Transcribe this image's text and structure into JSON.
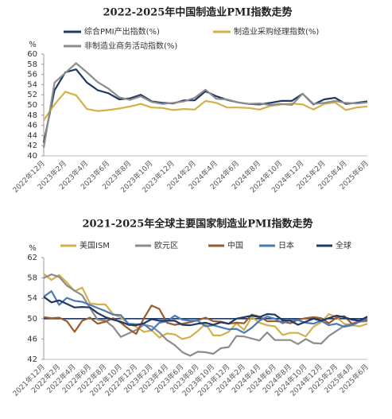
{
  "chart_data": [
    {
      "type": "line",
      "title": "2022-2025年中国制造业PMI指数走势",
      "ylabel": "%",
      "categories": [
        "2022年12月",
        null,
        "2023年2月",
        null,
        "2023年4月",
        null,
        "2023年6月",
        null,
        "2023年8月",
        null,
        "2023年10月",
        null,
        "2023年12月",
        null,
        "2024年2月",
        null,
        "2024年4月",
        null,
        "2024年6月",
        null,
        "2024年8月",
        null,
        "2024年10月",
        null,
        "2024年12月",
        null,
        "2025年2月",
        null,
        "2025年4月",
        null,
        "2025年6月"
      ],
      "series": [
        {
          "name": "综合PMI产出指数(%)",
          "color": "#1f3864",
          "values": [
            42.6,
            52.9,
            56.4,
            57.0,
            54.4,
            52.9,
            52.3,
            51.1,
            51.3,
            52.0,
            50.7,
            50.4,
            50.3,
            50.9,
            50.9,
            52.7,
            51.7,
            51.0,
            50.5,
            50.2,
            50.1,
            50.4,
            50.8,
            50.8,
            52.2,
            50.1,
            51.1,
            51.4,
            50.2,
            50.4,
            50.7
          ]
        },
        {
          "name": "制造业采购经理指数(%)",
          "color": "#d4b04a",
          "values": [
            47.0,
            50.1,
            52.6,
            51.9,
            49.2,
            48.8,
            49.0,
            49.3,
            49.7,
            50.2,
            49.5,
            49.4,
            49.0,
            49.2,
            49.1,
            50.8,
            50.4,
            49.5,
            49.5,
            49.4,
            49.1,
            49.8,
            50.1,
            50.3,
            50.1,
            49.1,
            50.2,
            50.5,
            49.0,
            49.5,
            49.7
          ]
        },
        {
          "name": "非制造业商务活动指数(%)",
          "color": "#8c8c8c",
          "values": [
            41.6,
            54.4,
            56.3,
            58.2,
            56.4,
            54.5,
            53.2,
            51.5,
            51.0,
            51.7,
            50.6,
            50.2,
            50.4,
            50.7,
            51.4,
            53.0,
            51.2,
            51.1,
            50.5,
            50.2,
            50.3,
            50.0,
            50.2,
            50.0,
            52.2,
            50.2,
            50.4,
            50.8,
            50.4,
            50.3,
            50.5
          ]
        }
      ],
      "ylim": [
        40,
        60
      ],
      "yticks": [
        40,
        42,
        44,
        46,
        48,
        50,
        52,
        54,
        56,
        58,
        60
      ],
      "grid": false
    },
    {
      "type": "line",
      "title": "2021-2025年全球主要国家制造业PMI指数走势",
      "ylabel": "%",
      "categories": [
        "2021年12月",
        null,
        "2022年2月",
        null,
        "2022年4月",
        null,
        "2022年6月",
        null,
        "2022年8月",
        null,
        "2022年10月",
        null,
        "2022年12月",
        null,
        "2023年2月",
        null,
        "2023年4月",
        null,
        "2023年6月",
        null,
        "2023年8月",
        null,
        "2023年10月",
        null,
        "2023年12月",
        null,
        "2024年2月",
        null,
        "2024年4月",
        null,
        "2024年6月",
        null,
        "2024年8月",
        null,
        "2024年10月",
        null,
        "2024年12月",
        null,
        "2025年2月",
        null,
        "2025年4月",
        null,
        "2025年6月"
      ],
      "series": [
        {
          "name": "美国ISM",
          "color": "#d4b04a",
          "values": [
            58.8,
            57.6,
            58.6,
            57.1,
            55.4,
            56.1,
            53.0,
            52.8,
            52.8,
            50.9,
            50.2,
            49.0,
            48.4,
            47.4,
            47.7,
            46.3,
            47.1,
            46.9,
            46.0,
            46.4,
            47.6,
            49.0,
            46.7,
            46.7,
            47.4,
            49.1,
            47.8,
            50.3,
            49.2,
            48.7,
            48.5,
            46.8,
            47.2,
            47.2,
            46.5,
            48.4,
            49.3,
            50.9,
            50.3,
            49.0,
            48.7,
            48.5,
            49.0
          ]
        },
        {
          "name": "欧元区",
          "color": "#8c8c8c",
          "values": [
            58.0,
            58.7,
            58.2,
            56.5,
            55.5,
            54.6,
            52.1,
            49.8,
            49.6,
            48.4,
            46.4,
            47.1,
            47.8,
            48.8,
            48.5,
            47.3,
            45.8,
            44.8,
            43.4,
            42.7,
            43.5,
            43.4,
            43.1,
            44.2,
            44.4,
            46.6,
            46.5,
            46.1,
            45.7,
            47.3,
            45.8,
            45.8,
            45.8,
            45.0,
            46.0,
            45.2,
            45.1,
            46.6,
            47.6,
            48.6,
            49.0,
            49.4,
            49.5
          ]
        },
        {
          "name": "中国",
          "color": "#9c5b2e",
          "values": [
            50.3,
            50.1,
            50.2,
            49.5,
            47.4,
            49.6,
            50.2,
            49.0,
            49.4,
            50.1,
            49.2,
            48.0,
            47.0,
            50.1,
            52.6,
            51.9,
            49.2,
            48.8,
            49.0,
            49.3,
            49.7,
            50.2,
            49.5,
            49.4,
            49.0,
            49.2,
            49.1,
            50.8,
            50.4,
            49.5,
            49.5,
            49.4,
            49.1,
            49.8,
            50.1,
            50.3,
            50.1,
            49.1,
            50.2,
            50.5,
            49.0,
            49.5,
            49.7
          ]
        },
        {
          "name": "日本",
          "color": "#4a7ab8",
          "values": [
            54.3,
            55.4,
            52.7,
            54.1,
            53.5,
            53.3,
            52.7,
            52.1,
            51.5,
            50.8,
            50.7,
            49.0,
            48.9,
            48.9,
            47.7,
            49.2,
            49.5,
            50.6,
            49.8,
            49.6,
            49.6,
            48.5,
            48.7,
            48.3,
            47.9,
            48.0,
            47.2,
            48.2,
            49.6,
            50.4,
            50.0,
            49.1,
            49.8,
            49.7,
            49.2,
            49.0,
            49.6,
            48.7,
            49.0,
            48.4,
            48.7,
            49.4,
            50.1
          ]
        },
        {
          "name": "全球",
          "color": "#1f3864",
          "values": [
            54.3,
            53.2,
            53.6,
            52.9,
            52.2,
            52.3,
            52.2,
            51.1,
            50.3,
            49.8,
            49.4,
            48.8,
            48.7,
            49.1,
            49.9,
            49.6,
            49.6,
            49.6,
            48.8,
            48.7,
            49.0,
            49.2,
            48.8,
            49.3,
            49.0,
            50.0,
            50.3,
            50.6,
            50.3,
            50.9,
            50.8,
            49.7,
            49.6,
            48.8,
            49.4,
            50.0,
            49.6,
            50.1,
            50.6,
            50.3,
            49.8,
            49.6,
            50.4
          ]
        }
      ],
      "ylim": [
        42,
        62
      ],
      "yticks": [
        42,
        46,
        50,
        54,
        58,
        62
      ],
      "hline": 50,
      "grid": false
    }
  ]
}
